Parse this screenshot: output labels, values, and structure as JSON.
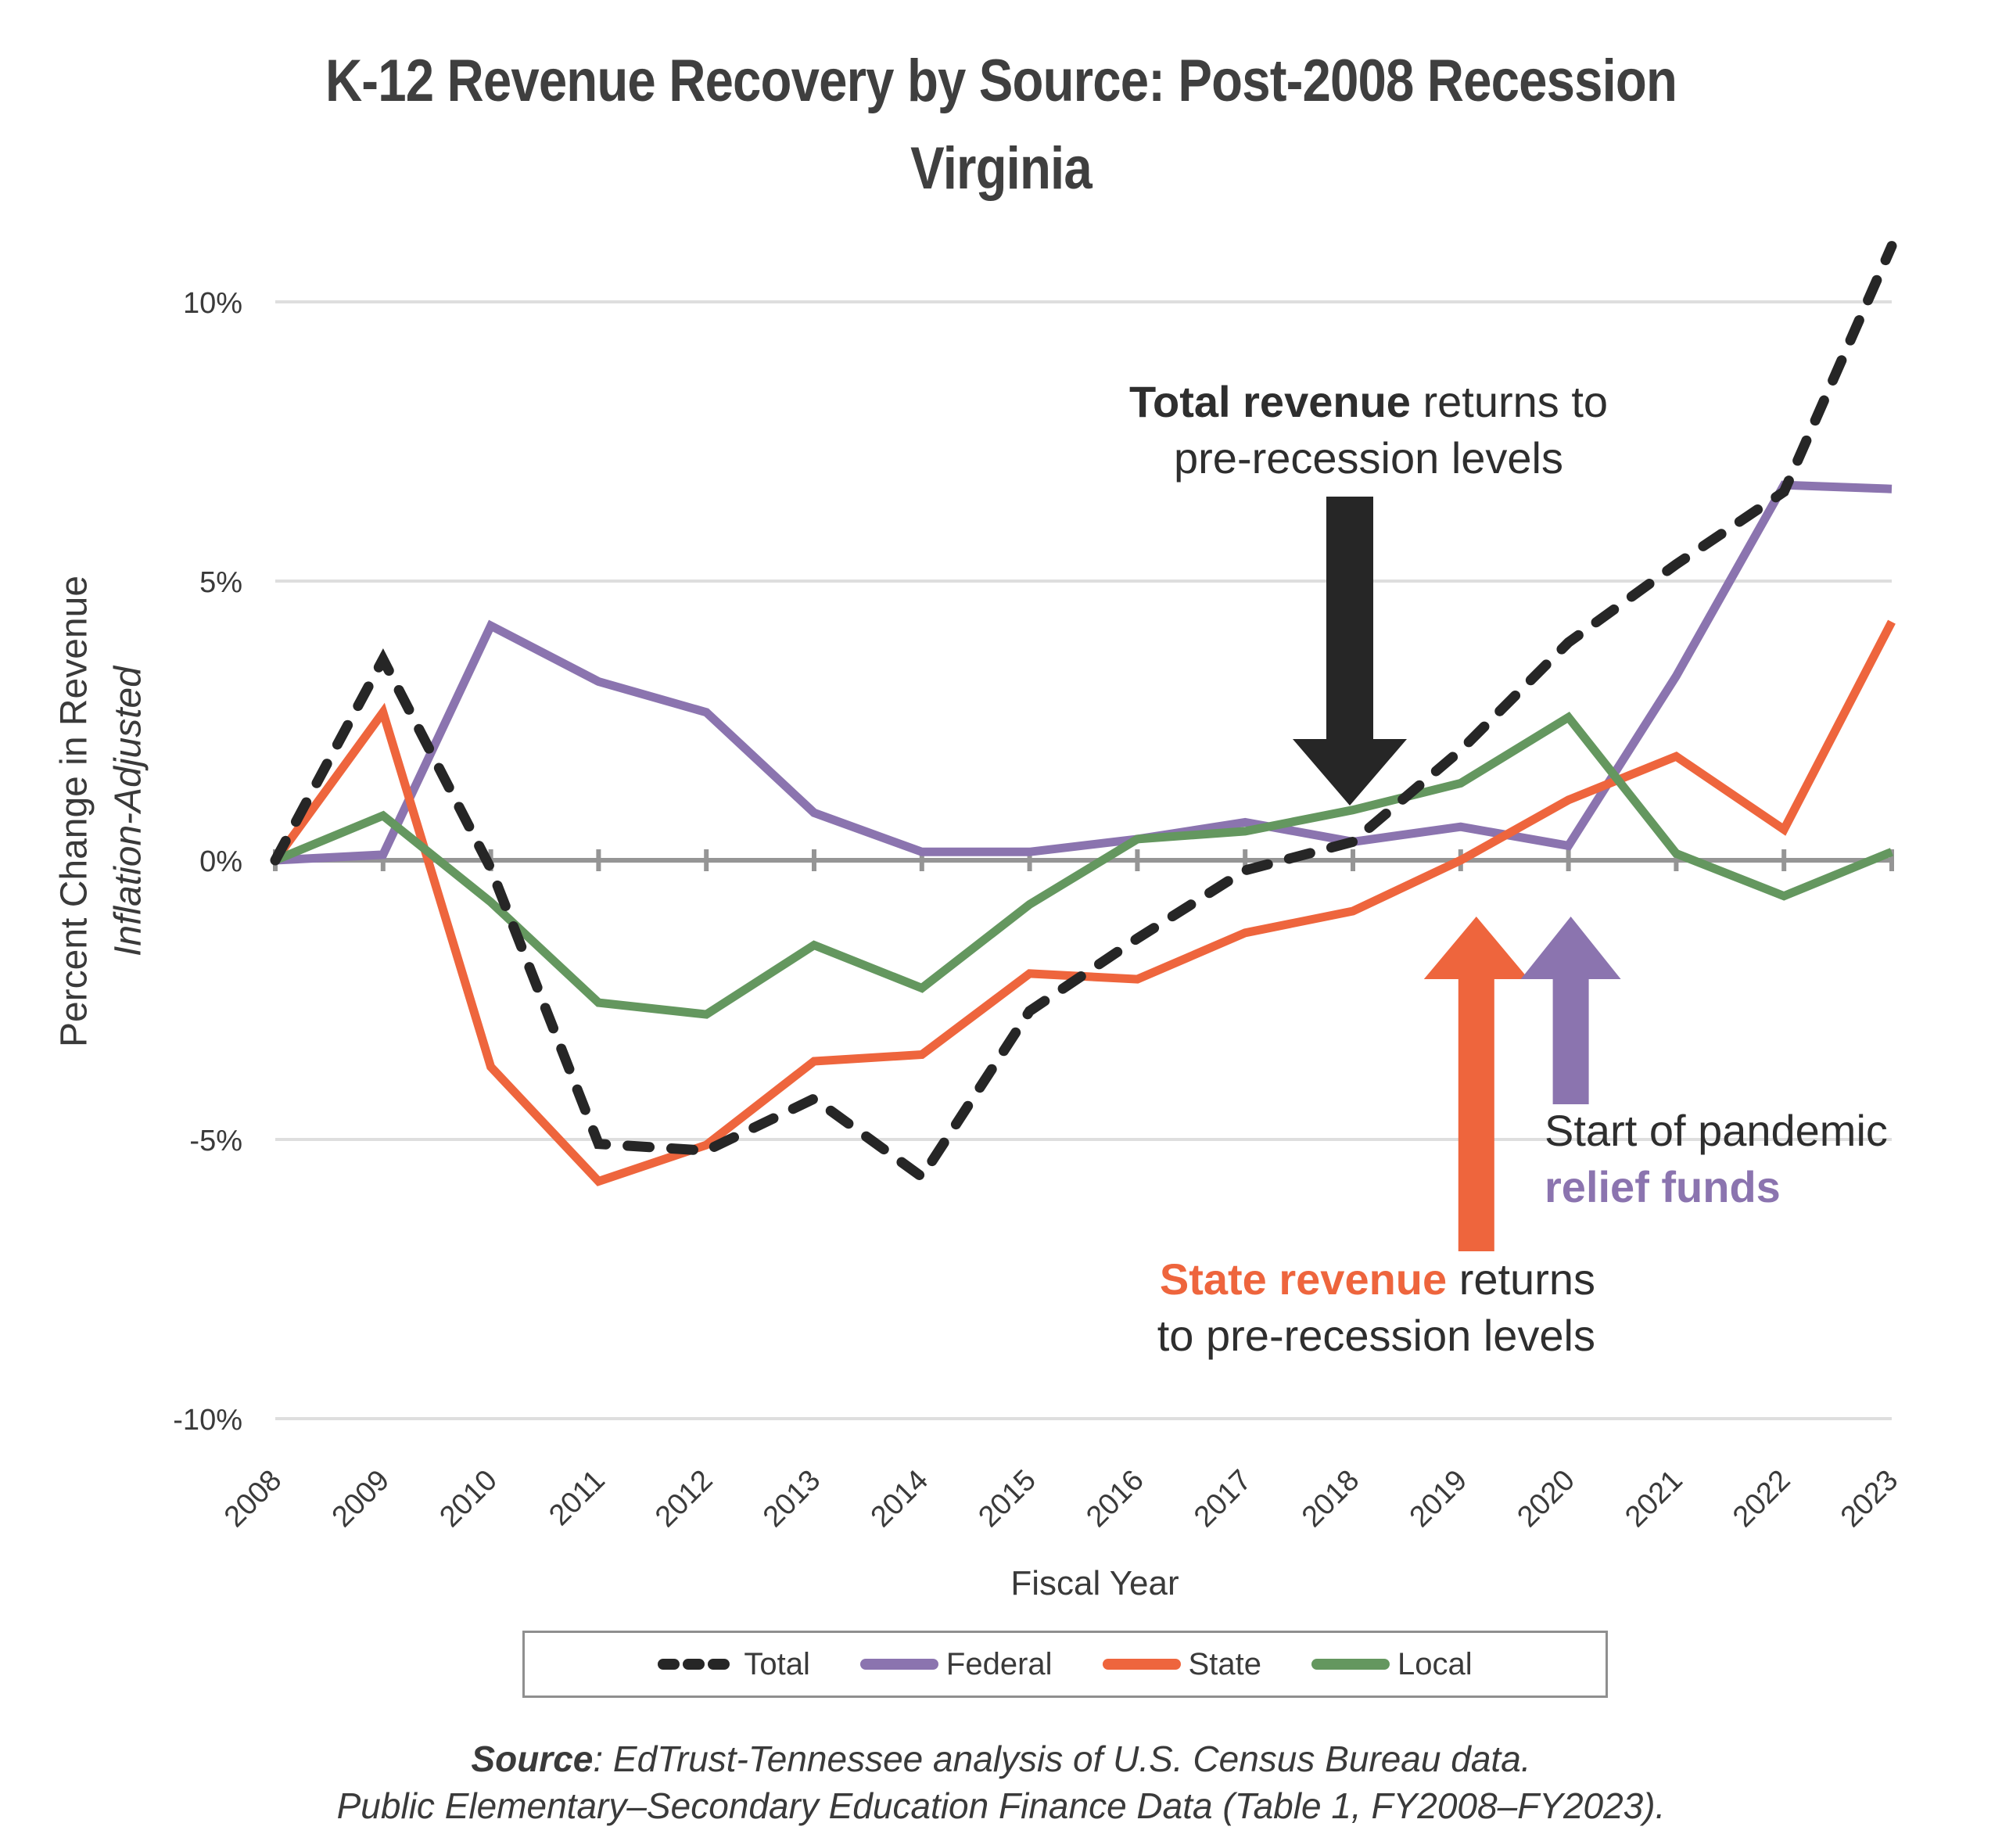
{
  "chart_data": {
    "type": "line",
    "title": "K-12 Revenue Recovery by Source: Post-2008 Recession",
    "subtitle": "Virginia",
    "xlabel": "Fiscal Year",
    "ylabel": "Percent  Change in Revenue",
    "ylabel_sub": "Inflation-Adjusted",
    "ylim": [
      -10,
      11
    ],
    "yticks": [
      10,
      5,
      0,
      -5,
      -10
    ],
    "ytick_labels": [
      "10%",
      "5%",
      "0%",
      "-5%",
      "-10%"
    ],
    "grid": true,
    "legend_position": "bottom",
    "categories": [
      "2008",
      "2009",
      "2010",
      "2011",
      "2012",
      "2013",
      "2014",
      "2015",
      "2016",
      "2017",
      "2018",
      "2019",
      "2020",
      "2021",
      "2022",
      "2023"
    ],
    "series": [
      {
        "name": "Total",
        "color": "#262626",
        "style": "dashed",
        "values": [
          0,
          3.6,
          -0.15,
          -5.08,
          -5.2,
          -4.27,
          -5.67,
          -2.7,
          -1.4,
          -0.18,
          0.33,
          1.97,
          3.9,
          5.3,
          6.6,
          11.0
        ]
      },
      {
        "name": "Federal",
        "color": "#8B74AF",
        "style": "solid",
        "values": [
          0,
          0.1,
          4.2,
          3.2,
          2.65,
          0.85,
          0.15,
          0.15,
          0.38,
          0.68,
          0.33,
          0.6,
          0.26,
          3.3,
          6.72,
          6.65
        ]
      },
      {
        "name": "State",
        "color": "#EE653D",
        "style": "solid",
        "values": [
          0,
          2.65,
          -3.7,
          -5.75,
          -5.1,
          -3.6,
          -3.48,
          -2.03,
          -2.13,
          -1.3,
          -0.91,
          0,
          1.08,
          1.86,
          0.55,
          4.27
        ]
      },
      {
        "name": "Local",
        "color": "#64975F",
        "style": "solid",
        "values": [
          0,
          0.8,
          -0.75,
          -2.55,
          -2.76,
          -1.52,
          -2.29,
          -0.79,
          0.38,
          0.52,
          0.9,
          1.38,
          2.56,
          0.12,
          -0.64,
          0.15
        ]
      }
    ],
    "annotations": [
      {
        "id": "total",
        "bold": "Total revenue",
        "rest_line1": " returns to",
        "line2": "pre-recession levels",
        "arrow_at": "2018",
        "arrow_direction": "down",
        "color": "#262626"
      },
      {
        "id": "state",
        "bold": "State revenue",
        "rest_line1": " returns",
        "line2": "to pre-recession levels",
        "arrow_at": "2019",
        "arrow_direction": "up",
        "color": "#EE653D"
      },
      {
        "id": "pandemic",
        "line1": "Start of pandemic",
        "bold_line2": "relief funds",
        "arrow_at": "2020",
        "arrow_direction": "up",
        "color": "#8B74AF"
      }
    ]
  },
  "source": {
    "label": "Source",
    "line1_rest": ": EdTrust-Tennessee analysis of U.S. Census Bureau data.",
    "line2": "Public Elementary–Secondary Education Finance Data (Table 1, FY2008–FY2023)."
  },
  "colors": {
    "axis": "#959595",
    "grid": "#dedede",
    "text": "#3a3a3a"
  }
}
